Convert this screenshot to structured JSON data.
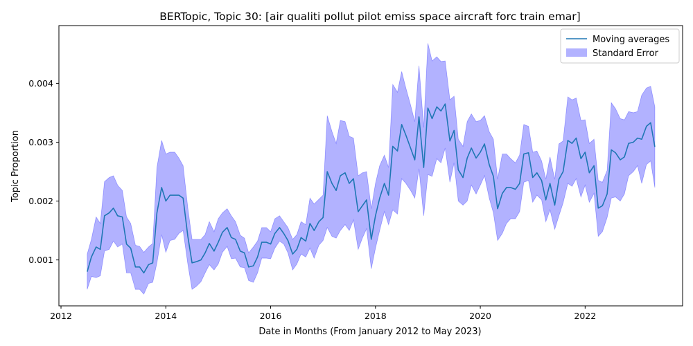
{
  "chart_data": {
    "type": "line",
    "title": "BERTopic, Topic 30: [air qualiti pollut pilot emiss space aircraft forc train emar]",
    "xlabel": "Date in Months (From January 2012 to May 2023)",
    "ylabel": "Topic Proportion",
    "xlim": [
      2011.96,
      2023.86
    ],
    "ylim": [
      0.00022,
      0.00498
    ],
    "x_ticks": [
      2012,
      2014,
      2016,
      2018,
      2020,
      2022
    ],
    "y_ticks": [
      0.001,
      0.002,
      0.003,
      0.004
    ],
    "grid": false,
    "legend_position": "top-right",
    "series": [
      {
        "name": "Moving averages",
        "color": "#1f77b4",
        "x": [
          2012.5,
          2012.58,
          2012.67,
          2012.75,
          2012.83,
          2012.92,
          2013.0,
          2013.08,
          2013.17,
          2013.25,
          2013.33,
          2013.42,
          2013.5,
          2013.58,
          2013.67,
          2013.75,
          2013.83,
          2013.92,
          2014.0,
          2014.08,
          2014.17,
          2014.25,
          2014.33,
          2014.42,
          2014.5,
          2014.58,
          2014.67,
          2014.75,
          2014.83,
          2014.92,
          2015.0,
          2015.08,
          2015.17,
          2015.25,
          2015.33,
          2015.42,
          2015.5,
          2015.58,
          2015.67,
          2015.75,
          2015.83,
          2015.92,
          2016.0,
          2016.08,
          2016.17,
          2016.25,
          2016.33,
          2016.42,
          2016.5,
          2016.58,
          2016.67,
          2016.75,
          2016.83,
          2016.92,
          2017.0,
          2017.08,
          2017.17,
          2017.25,
          2017.33,
          2017.42,
          2017.5,
          2017.58,
          2017.67,
          2017.75,
          2017.83,
          2017.92,
          2018.0,
          2018.08,
          2018.17,
          2018.25,
          2018.33,
          2018.42,
          2018.5,
          2018.58,
          2018.67,
          2018.75,
          2018.83,
          2018.92,
          2019.0,
          2019.08,
          2019.17,
          2019.25,
          2019.33,
          2019.42,
          2019.5,
          2019.58,
          2019.67,
          2019.75,
          2019.83,
          2019.92,
          2020.0,
          2020.08,
          2020.17,
          2020.25,
          2020.33,
          2020.42,
          2020.5,
          2020.58,
          2020.67,
          2020.75,
          2020.83,
          2020.92,
          2021.0,
          2021.08,
          2021.17,
          2021.25,
          2021.33,
          2021.42,
          2021.5,
          2021.58,
          2021.67,
          2021.75,
          2021.83,
          2021.92,
          2022.0,
          2022.08,
          2022.17,
          2022.25,
          2022.33,
          2022.42,
          2022.5,
          2022.58,
          2022.67,
          2022.75,
          2022.83,
          2022.92,
          2023.0,
          2023.08,
          2023.17,
          2023.25,
          2023.33
        ],
        "values": [
          0.0008,
          0.00105,
          0.00122,
          0.00118,
          0.00175,
          0.0018,
          0.00188,
          0.00175,
          0.00173,
          0.00127,
          0.0012,
          0.00088,
          0.00088,
          0.00078,
          0.00092,
          0.00095,
          0.0018,
          0.00223,
          0.002,
          0.0021,
          0.0021,
          0.0021,
          0.00205,
          0.0014,
          0.00095,
          0.00097,
          0.001,
          0.00112,
          0.00128,
          0.00115,
          0.0013,
          0.00147,
          0.00155,
          0.00138,
          0.00135,
          0.00115,
          0.00112,
          0.00088,
          0.0009,
          0.00105,
          0.0013,
          0.0013,
          0.00127,
          0.00145,
          0.00155,
          0.00145,
          0.00133,
          0.0011,
          0.00118,
          0.00138,
          0.00132,
          0.00162,
          0.0015,
          0.00165,
          0.00172,
          0.0025,
          0.0023,
          0.00218,
          0.00243,
          0.00248,
          0.0023,
          0.00238,
          0.00182,
          0.00192,
          0.00202,
          0.00135,
          0.00175,
          0.00205,
          0.0023,
          0.0021,
          0.00293,
          0.00285,
          0.0033,
          0.00312,
          0.0029,
          0.0027,
          0.00343,
          0.00257,
          0.00358,
          0.0034,
          0.0036,
          0.00353,
          0.00365,
          0.00302,
          0.0032,
          0.00253,
          0.0024,
          0.00273,
          0.0029,
          0.00273,
          0.00283,
          0.00297,
          0.00262,
          0.00242,
          0.00187,
          0.00213,
          0.00223,
          0.00223,
          0.0022,
          0.0023,
          0.0028,
          0.00282,
          0.0024,
          0.00248,
          0.00235,
          0.00202,
          0.0023,
          0.00193,
          0.00237,
          0.0025,
          0.00303,
          0.00298,
          0.00307,
          0.00272,
          0.00283,
          0.00248,
          0.0026,
          0.00188,
          0.00192,
          0.00212,
          0.00287,
          0.00282,
          0.0027,
          0.00275,
          0.00298,
          0.003,
          0.00307,
          0.00305,
          0.00327,
          0.00333,
          0.00292
        ]
      },
      {
        "name": "Standard Error",
        "color": "#0000ff",
        "opacity": 0.3,
        "upper": [
          0.0011,
          0.00135,
          0.00173,
          0.00162,
          0.00233,
          0.0024,
          0.00243,
          0.00227,
          0.00218,
          0.00173,
          0.00162,
          0.00125,
          0.00123,
          0.00113,
          0.00122,
          0.00128,
          0.00257,
          0.00303,
          0.0028,
          0.00283,
          0.00283,
          0.00273,
          0.0026,
          0.00188,
          0.00135,
          0.00135,
          0.00135,
          0.00143,
          0.00165,
          0.00148,
          0.0017,
          0.0018,
          0.00187,
          0.00175,
          0.00165,
          0.00142,
          0.00137,
          0.00112,
          0.00122,
          0.00132,
          0.00155,
          0.00155,
          0.00148,
          0.0017,
          0.00175,
          0.00165,
          0.00155,
          0.00135,
          0.00143,
          0.00165,
          0.0016,
          0.00205,
          0.00195,
          0.00203,
          0.0021,
          0.00345,
          0.00318,
          0.00298,
          0.00337,
          0.00335,
          0.0031,
          0.00307,
          0.00243,
          0.00248,
          0.0025,
          0.00187,
          0.0023,
          0.0026,
          0.00278,
          0.00257,
          0.00398,
          0.00385,
          0.0042,
          0.00392,
          0.00363,
          0.00335,
          0.0043,
          0.00325,
          0.00468,
          0.00438,
          0.00445,
          0.00437,
          0.00438,
          0.00372,
          0.00378,
          0.00305,
          0.00293,
          0.00335,
          0.00348,
          0.00335,
          0.00337,
          0.00345,
          0.00318,
          0.00305,
          0.00237,
          0.0028,
          0.0028,
          0.00272,
          0.00265,
          0.00278,
          0.0033,
          0.00327,
          0.00283,
          0.00285,
          0.00268,
          0.00237,
          0.00275,
          0.00237,
          0.00297,
          0.00302,
          0.00377,
          0.00372,
          0.00375,
          0.00337,
          0.00338,
          0.00298,
          0.00305,
          0.00235,
          0.00232,
          0.00252,
          0.00367,
          0.00357,
          0.0034,
          0.00338,
          0.00352,
          0.0035,
          0.00352,
          0.0038,
          0.00392,
          0.00395,
          0.0036
        ],
        "lower": [
          0.0005,
          0.00072,
          0.0007,
          0.00073,
          0.00115,
          0.00118,
          0.00132,
          0.00122,
          0.00127,
          0.00078,
          0.00078,
          0.0005,
          0.0005,
          0.00042,
          0.0006,
          0.00062,
          0.00095,
          0.00143,
          0.00113,
          0.00133,
          0.00135,
          0.00145,
          0.0015,
          0.00093,
          0.0005,
          0.00055,
          0.00063,
          0.00078,
          0.00092,
          0.00083,
          0.00093,
          0.00113,
          0.00123,
          0.00102,
          0.00103,
          0.00088,
          0.00087,
          0.00065,
          0.00062,
          0.00078,
          0.00103,
          0.00103,
          0.00102,
          0.0012,
          0.00132,
          0.00127,
          0.00112,
          0.00083,
          0.00093,
          0.0011,
          0.00105,
          0.0012,
          0.00103,
          0.00125,
          0.00133,
          0.00155,
          0.0014,
          0.00137,
          0.0015,
          0.0016,
          0.0015,
          0.00168,
          0.00118,
          0.00137,
          0.00153,
          0.00085,
          0.0012,
          0.0015,
          0.00182,
          0.0016,
          0.00185,
          0.00178,
          0.00238,
          0.0023,
          0.00218,
          0.00205,
          0.00255,
          0.00175,
          0.00245,
          0.00242,
          0.00272,
          0.00265,
          0.0029,
          0.00232,
          0.00265,
          0.002,
          0.00193,
          0.002,
          0.00227,
          0.00212,
          0.00227,
          0.00243,
          0.00205,
          0.0018,
          0.00133,
          0.00145,
          0.00162,
          0.0017,
          0.0017,
          0.00182,
          0.00232,
          0.00235,
          0.00198,
          0.0021,
          0.00202,
          0.00165,
          0.00185,
          0.00152,
          0.00175,
          0.00197,
          0.0023,
          0.00225,
          0.00238,
          0.00207,
          0.00227,
          0.00198,
          0.00213,
          0.0014,
          0.00148,
          0.00172,
          0.00205,
          0.00207,
          0.002,
          0.00212,
          0.00243,
          0.0025,
          0.0026,
          0.0023,
          0.00262,
          0.00268,
          0.00223
        ]
      }
    ]
  }
}
